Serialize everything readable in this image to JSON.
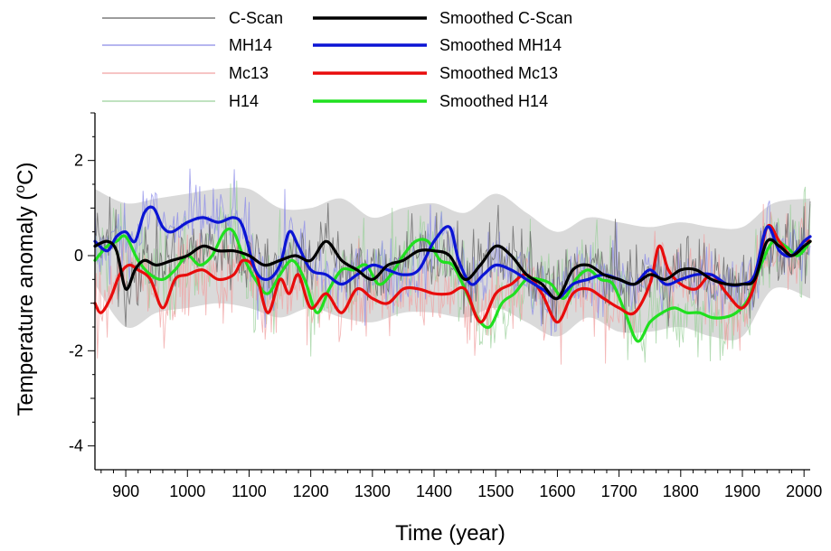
{
  "chart_data": {
    "type": "line",
    "xlabel": "Time (year)",
    "ylabel": "Temperature anomaly (",
    "ylabel_sup": "o",
    "ylabel_unit": "C)",
    "xlim": [
      850,
      2010
    ],
    "ylim": [
      -4.5,
      3.0
    ],
    "x_ticks": [
      900,
      1000,
      1100,
      1200,
      1300,
      1400,
      1500,
      1600,
      1700,
      1800,
      1900,
      2000
    ],
    "x_tick_labels": [
      "900",
      "1000",
      "1100",
      "1200",
      "1300",
      "1400",
      "1500",
      "1600",
      "1700",
      "1800",
      "1900",
      "2000"
    ],
    "y_ticks": [
      2,
      0,
      -2,
      -4
    ],
    "y_tick_labels": [
      "2",
      "0",
      "-2",
      "-4"
    ],
    "grid": false,
    "legend_position": "top",
    "uncertainty_band": {
      "color": "#d3d3d3",
      "x": [
        850,
        900,
        950,
        1000,
        1050,
        1100,
        1150,
        1200,
        1250,
        1300,
        1350,
        1400,
        1450,
        1500,
        1550,
        1600,
        1650,
        1700,
        1750,
        1800,
        1850,
        1900,
        1950,
        2010
      ],
      "upper": [
        1.4,
        1.1,
        1.2,
        1.3,
        1.4,
        1.4,
        1.0,
        1.0,
        1.2,
        0.8,
        1.0,
        1.1,
        0.9,
        1.3,
        0.9,
        0.5,
        0.8,
        0.7,
        0.6,
        0.7,
        0.6,
        0.6,
        1.1,
        1.2
      ],
      "lower": [
        -0.6,
        -1.5,
        -1.2,
        -1.1,
        -1.0,
        -1.1,
        -1.3,
        -1.1,
        -1.3,
        -1.4,
        -1.2,
        -1.2,
        -1.3,
        -1.1,
        -1.4,
        -1.7,
        -1.3,
        -1.6,
        -1.6,
        -1.5,
        -1.7,
        -1.7,
        -0.7,
        -0.9
      ]
    },
    "series": [
      {
        "name": "Smoothed C-Scan",
        "raw_name": "C-Scan",
        "color": "#000000",
        "raw_color": "#606060",
        "x": [
          850,
          870,
          885,
          900,
          915,
          930,
          950,
          975,
          1000,
          1025,
          1050,
          1075,
          1100,
          1125,
          1150,
          1175,
          1200,
          1225,
          1250,
          1275,
          1300,
          1325,
          1350,
          1375,
          1400,
          1425,
          1450,
          1475,
          1500,
          1525,
          1550,
          1575,
          1600,
          1625,
          1650,
          1675,
          1700,
          1725,
          1750,
          1775,
          1800,
          1825,
          1850,
          1875,
          1900,
          1920,
          1940,
          1960,
          1980,
          2000,
          2010
        ],
        "values": [
          0.2,
          0.3,
          0.1,
          -0.7,
          -0.3,
          -0.1,
          -0.2,
          -0.1,
          0.0,
          0.2,
          0.1,
          0.1,
          0.0,
          -0.2,
          -0.1,
          0.0,
          -0.1,
          0.3,
          -0.1,
          -0.3,
          -0.5,
          -0.2,
          -0.1,
          0.1,
          0.1,
          0.0,
          -0.5,
          -0.2,
          0.2,
          0.0,
          -0.4,
          -0.6,
          -0.9,
          -0.3,
          -0.2,
          -0.4,
          -0.5,
          -0.6,
          -0.4,
          -0.5,
          -0.3,
          -0.3,
          -0.5,
          -0.6,
          -0.6,
          -0.5,
          0.3,
          0.2,
          0.0,
          0.2,
          0.3
        ]
      },
      {
        "name": "Smoothed MH14",
        "raw_name": "MH14",
        "color": "#0b14d4",
        "raw_color": "#8a8ae8",
        "x": [
          850,
          870,
          885,
          900,
          915,
          930,
          945,
          960,
          975,
          1000,
          1025,
          1050,
          1075,
          1090,
          1110,
          1130,
          1150,
          1165,
          1180,
          1200,
          1225,
          1250,
          1275,
          1300,
          1325,
          1350,
          1375,
          1400,
          1425,
          1440,
          1460,
          1480,
          1500,
          1525,
          1550,
          1575,
          1600,
          1625,
          1650,
          1675,
          1700,
          1725,
          1750,
          1775,
          1800,
          1825,
          1850,
          1875,
          1900,
          1920,
          1940,
          1960,
          1980,
          2000,
          2010
        ],
        "values": [
          0.3,
          0.1,
          0.4,
          0.5,
          0.3,
          0.9,
          1.0,
          0.6,
          0.5,
          0.7,
          0.8,
          0.7,
          0.8,
          0.6,
          -0.3,
          -0.5,
          -0.2,
          0.5,
          0.2,
          -0.3,
          -0.4,
          -0.6,
          -0.4,
          -0.2,
          -0.3,
          -0.4,
          -0.3,
          0.3,
          0.6,
          -0.1,
          -0.6,
          -0.4,
          -0.2,
          -0.3,
          -0.5,
          -0.7,
          -0.9,
          -0.6,
          -0.5,
          -0.4,
          -0.5,
          -0.6,
          -0.3,
          -0.6,
          -0.5,
          -0.4,
          -0.4,
          -0.6,
          -0.6,
          -0.4,
          0.6,
          0.1,
          0.0,
          0.3,
          0.4
        ]
      },
      {
        "name": "Smoothed Mc13",
        "raw_name": "Mc13",
        "color": "#e80c0c",
        "raw_color": "#f0a0a0",
        "x": [
          850,
          860,
          875,
          890,
          905,
          920,
          940,
          960,
          980,
          1000,
          1025,
          1050,
          1075,
          1090,
          1110,
          1130,
          1150,
          1165,
          1180,
          1200,
          1225,
          1250,
          1275,
          1300,
          1325,
          1350,
          1375,
          1400,
          1425,
          1450,
          1475,
          1500,
          1525,
          1550,
          1575,
          1600,
          1625,
          1650,
          1675,
          1700,
          1725,
          1750,
          1765,
          1780,
          1800,
          1825,
          1850,
          1875,
          1900,
          1920,
          1940,
          1960,
          1980,
          2000,
          2010
        ],
        "values": [
          -1.0,
          -1.2,
          -0.9,
          -0.4,
          -0.2,
          -0.3,
          -0.5,
          -1.1,
          -0.5,
          -0.4,
          -0.3,
          -0.5,
          -0.4,
          -0.1,
          -0.3,
          -1.2,
          -0.5,
          -0.8,
          -0.4,
          -1.1,
          -0.8,
          -1.2,
          -0.7,
          -0.9,
          -1.0,
          -0.7,
          -0.7,
          -0.8,
          -0.8,
          -0.7,
          -1.4,
          -0.8,
          -0.6,
          -0.4,
          -0.8,
          -1.4,
          -0.8,
          -0.7,
          -0.9,
          -1.1,
          -1.2,
          -0.6,
          0.2,
          -0.3,
          -0.6,
          -0.7,
          -0.4,
          -0.8,
          -1.1,
          -0.6,
          0.6,
          0.3,
          0.0,
          0.3,
          0.3
        ]
      },
      {
        "name": "Smoothed H14",
        "raw_name": "H14",
        "color": "#20e020",
        "raw_color": "#9bd09b",
        "x": [
          850,
          870,
          885,
          900,
          920,
          940,
          960,
          980,
          1000,
          1020,
          1040,
          1060,
          1075,
          1090,
          1110,
          1130,
          1150,
          1170,
          1190,
          1210,
          1230,
          1250,
          1270,
          1290,
          1310,
          1330,
          1350,
          1370,
          1390,
          1410,
          1430,
          1450,
          1470,
          1490,
          1510,
          1530,
          1550,
          1570,
          1590,
          1610,
          1630,
          1650,
          1670,
          1690,
          1710,
          1730,
          1750,
          1770,
          1790,
          1810,
          1830,
          1850,
          1870,
          1890,
          1910,
          1930,
          1950,
          1970,
          1990,
          2010
        ],
        "values": [
          -0.1,
          0.2,
          0.3,
          0.4,
          -0.1,
          -0.4,
          -0.5,
          -0.3,
          0.0,
          -0.2,
          0.0,
          0.5,
          0.5,
          0.0,
          -0.5,
          -0.8,
          -0.4,
          -0.1,
          -0.5,
          -1.2,
          -0.7,
          -0.3,
          -0.3,
          -0.2,
          -0.6,
          -0.4,
          0.0,
          0.3,
          0.3,
          -0.1,
          -0.2,
          -0.7,
          -1.3,
          -1.5,
          -1.0,
          -0.8,
          -0.5,
          -0.5,
          -0.6,
          -0.9,
          -0.5,
          -0.3,
          -0.5,
          -0.6,
          -1.2,
          -1.8,
          -1.4,
          -1.2,
          -1.1,
          -1.2,
          -1.2,
          -1.3,
          -1.3,
          -1.2,
          -0.9,
          -0.2,
          0.3,
          0.2,
          0.0,
          0.3
        ]
      }
    ]
  }
}
